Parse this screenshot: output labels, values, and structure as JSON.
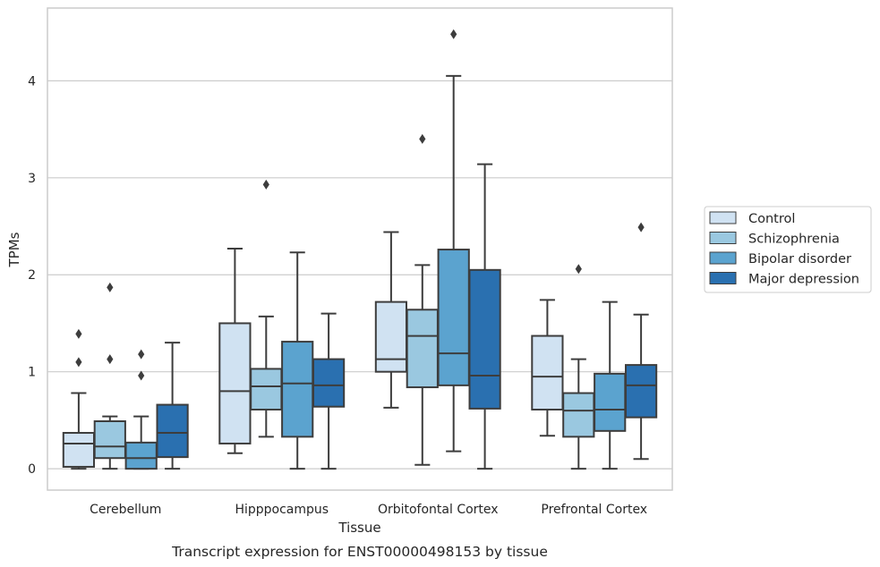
{
  "caption": "Transcript expression for ENST00000498153 by tissue",
  "chart_data": {
    "type": "box",
    "xlabel": "Tissue",
    "ylabel": "TPMs",
    "ylim": [
      -0.22,
      4.75
    ],
    "yticks": [
      "0",
      "1",
      "2",
      "3",
      "4"
    ],
    "grid": "horizontal",
    "legend_position": "right",
    "categories": [
      "Cerebellum",
      "Hipppocampus",
      "Orbitofontal Cortex",
      "Prefrontal Cortex"
    ],
    "series": [
      {
        "name": "Control",
        "color": "#d0e2f2",
        "boxes": [
          {
            "whisker_low": 0.0,
            "q1": 0.02,
            "median": 0.26,
            "q3": 0.37,
            "whisker_high": 0.78,
            "outliers": [
              1.39,
              1.1
            ]
          },
          {
            "whisker_low": 0.16,
            "q1": 0.26,
            "median": 0.8,
            "q3": 1.5,
            "whisker_high": 2.27,
            "outliers": []
          },
          {
            "whisker_low": 0.63,
            "q1": 1.0,
            "median": 1.13,
            "q3": 1.72,
            "whisker_high": 2.44,
            "outliers": []
          },
          {
            "whisker_low": 0.34,
            "q1": 0.61,
            "median": 0.95,
            "q3": 1.37,
            "whisker_high": 1.74,
            "outliers": []
          }
        ]
      },
      {
        "name": "Schizophrenia",
        "color": "#9ac8e0",
        "boxes": [
          {
            "whisker_low": 0.0,
            "q1": 0.11,
            "median": 0.23,
            "q3": 0.49,
            "whisker_high": 0.54,
            "outliers": [
              1.87,
              1.13
            ]
          },
          {
            "whisker_low": 0.33,
            "q1": 0.61,
            "median": 0.85,
            "q3": 1.03,
            "whisker_high": 1.57,
            "outliers": [
              2.93
            ]
          },
          {
            "whisker_low": 0.04,
            "q1": 0.84,
            "median": 1.37,
            "q3": 1.64,
            "whisker_high": 2.1,
            "outliers": [
              3.4
            ]
          },
          {
            "whisker_low": 0.0,
            "q1": 0.33,
            "median": 0.6,
            "q3": 0.78,
            "whisker_high": 1.13,
            "outliers": [
              2.06
            ]
          }
        ]
      },
      {
        "name": "Bipolar disorder",
        "color": "#5ba3cf",
        "boxes": [
          {
            "whisker_low": 0.0,
            "q1": 0.0,
            "median": 0.11,
            "q3": 0.27,
            "whisker_high": 0.54,
            "outliers": [
              1.18,
              0.96
            ]
          },
          {
            "whisker_low": 0.0,
            "q1": 0.33,
            "median": 0.88,
            "q3": 1.31,
            "whisker_high": 2.23,
            "outliers": []
          },
          {
            "whisker_low": 0.18,
            "q1": 0.86,
            "median": 1.19,
            "q3": 2.26,
            "whisker_high": 4.05,
            "outliers": [
              4.48
            ]
          },
          {
            "whisker_low": 0.0,
            "q1": 0.39,
            "median": 0.61,
            "q3": 0.98,
            "whisker_high": 1.72,
            "outliers": []
          }
        ]
      },
      {
        "name": "Major depression",
        "color": "#2a70b0",
        "boxes": [
          {
            "whisker_low": 0.0,
            "q1": 0.12,
            "median": 0.37,
            "q3": 0.66,
            "whisker_high": 1.3,
            "outliers": []
          },
          {
            "whisker_low": 0.0,
            "q1": 0.64,
            "median": 0.86,
            "q3": 1.13,
            "whisker_high": 1.6,
            "outliers": []
          },
          {
            "whisker_low": 0.0,
            "q1": 0.62,
            "median": 0.96,
            "q3": 2.05,
            "whisker_high": 3.14,
            "outliers": []
          },
          {
            "whisker_low": 0.1,
            "q1": 0.53,
            "median": 0.86,
            "q3": 1.07,
            "whisker_high": 1.59,
            "outliers": [
              2.49
            ]
          }
        ]
      }
    ]
  }
}
